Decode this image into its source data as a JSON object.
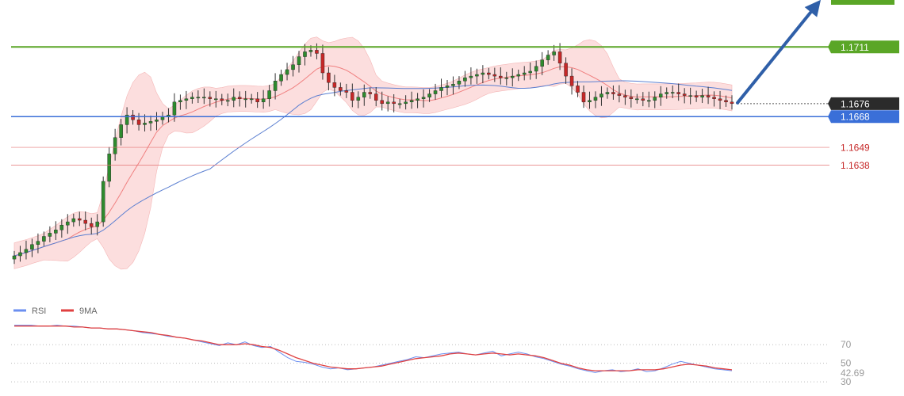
{
  "colors": {
    "bull": "#2e8b2e",
    "bear": "#c62828",
    "resistance": "#5aa626",
    "support": "#3a6fd8",
    "level_red": "#e57373",
    "band_fill": "#fbd3d3",
    "ma_fast": "#f08080",
    "ma_slow": "#5b7fd1",
    "arrow": "#2f5fa8",
    "current_tag_bg": "#2b2b2b",
    "rsi_line": "#6b8ff0",
    "rsi_ma_line": "#e04040"
  },
  "chart_data": [
    {
      "type": "candlestick",
      "title": "",
      "xlabel": "",
      "ylabel": "",
      "ylim": [
        1.156,
        1.174
      ],
      "grid": false,
      "price_levels": {
        "resistance": "1.1711",
        "current": "1.1676",
        "support": "1.1668",
        "target_1": "1.1649",
        "target_2": "1.1638"
      },
      "price_levels_values": {
        "resistance": 1.1711,
        "current": 1.1676,
        "support": 1.1668,
        "target_1": 1.1649,
        "target_2": 1.1638
      },
      "close_series": [
        1.1582,
        1.1584,
        1.1586,
        1.1589,
        1.1591,
        1.1594,
        1.1596,
        1.1598,
        1.1601,
        1.1603,
        1.1605,
        1.1604,
        1.1602,
        1.16,
        1.1603,
        1.1628,
        1.1645,
        1.1655,
        1.1663,
        1.1669,
        1.1666,
        1.1663,
        1.1664,
        1.1665,
        1.1666,
        1.1668,
        1.1669,
        1.1677,
        1.1678,
        1.1679,
        1.168,
        1.168,
        1.168,
        1.1679,
        1.1679,
        1.1678,
        1.1678,
        1.168,
        1.1679,
        1.1679,
        1.1679,
        1.1677,
        1.1679,
        1.1684,
        1.169,
        1.1694,
        1.1697,
        1.17,
        1.1705,
        1.1708,
        1.1709,
        1.1707,
        1.1695,
        1.1689,
        1.1686,
        1.1684,
        1.1683,
        1.1678,
        1.168,
        1.1683,
        1.1682,
        1.1678,
        1.1676,
        1.1677,
        1.1676,
        1.1676,
        1.1677,
        1.1678,
        1.1679,
        1.168,
        1.1682,
        1.1684,
        1.1686,
        1.1687,
        1.1688,
        1.169,
        1.1692,
        1.1693,
        1.1694,
        1.1695,
        1.1694,
        1.1693,
        1.1692,
        1.1692,
        1.1693,
        1.1694,
        1.1695,
        1.1696,
        1.1699,
        1.1703,
        1.1706,
        1.1708,
        1.1701,
        1.1693,
        1.1687,
        1.1683,
        1.1677,
        1.1678,
        1.168,
        1.1682,
        1.1683,
        1.1682,
        1.1681,
        1.168,
        1.1679,
        1.1679,
        1.1678,
        1.1678,
        1.168,
        1.1682,
        1.1683,
        1.1683,
        1.1682,
        1.1681,
        1.1681,
        1.168,
        1.1681,
        1.168,
        1.1679,
        1.1678,
        1.1677,
        1.1676
      ],
      "series": [
        {
          "name": "",
          "kind": "bollinger-band"
        },
        {
          "name": "",
          "kind": "moving-average-fast"
        },
        {
          "name": "",
          "kind": "moving-average-slow"
        }
      ]
    },
    {
      "type": "line",
      "title": "",
      "xlabel": "",
      "ylabel": "",
      "ylim": [
        25,
        100
      ],
      "yticks": [
        30,
        50,
        70
      ],
      "legend": [
        "RSI",
        "9MA"
      ],
      "legend_position": "top-left",
      "current_value": "42.69",
      "series": [
        {
          "name": "RSI",
          "values": [
            91,
            91,
            91,
            90,
            90,
            91,
            90,
            90,
            89,
            88,
            88,
            87,
            87,
            86,
            85,
            83,
            82,
            81,
            79,
            78,
            77,
            75,
            73,
            71,
            69,
            72,
            70,
            73,
            69,
            67,
            68,
            62,
            56,
            52,
            51,
            49,
            46,
            44,
            45,
            43,
            44,
            45,
            46,
            48,
            50,
            52,
            54,
            57,
            56,
            58,
            60,
            61,
            62,
            60,
            59,
            61,
            63,
            58,
            60,
            62,
            60,
            57,
            55,
            52,
            49,
            47,
            44,
            42,
            40,
            42,
            43,
            41,
            42,
            44,
            41,
            42,
            45,
            49,
            52,
            50,
            48,
            46,
            44,
            43,
            42
          ]
        },
        {
          "name": "9MA",
          "values": [
            90,
            90,
            90,
            90,
            90,
            90,
            90,
            89,
            89,
            88,
            88,
            87,
            87,
            86,
            85,
            84,
            83,
            81,
            80,
            78,
            77,
            75,
            74,
            72,
            70,
            70,
            70,
            71,
            70,
            68,
            67,
            64,
            60,
            56,
            53,
            50,
            48,
            46,
            45,
            44,
            44,
            45,
            46,
            47,
            49,
            51,
            53,
            55,
            56,
            57,
            58,
            60,
            61,
            60,
            59,
            60,
            61,
            60,
            59,
            60,
            59,
            58,
            56,
            53,
            50,
            48,
            45,
            43,
            42,
            42,
            42,
            42,
            42,
            43,
            43,
            43,
            44,
            46,
            48,
            49,
            48,
            47,
            45,
            44,
            43
          ]
        }
      ]
    }
  ],
  "rsi": {
    "legend": {
      "rsi_label": "RSI",
      "ma_label": "9MA"
    },
    "levels": {
      "t70": "70",
      "t50": "50",
      "t30": "30"
    },
    "current_value": "42.69"
  }
}
